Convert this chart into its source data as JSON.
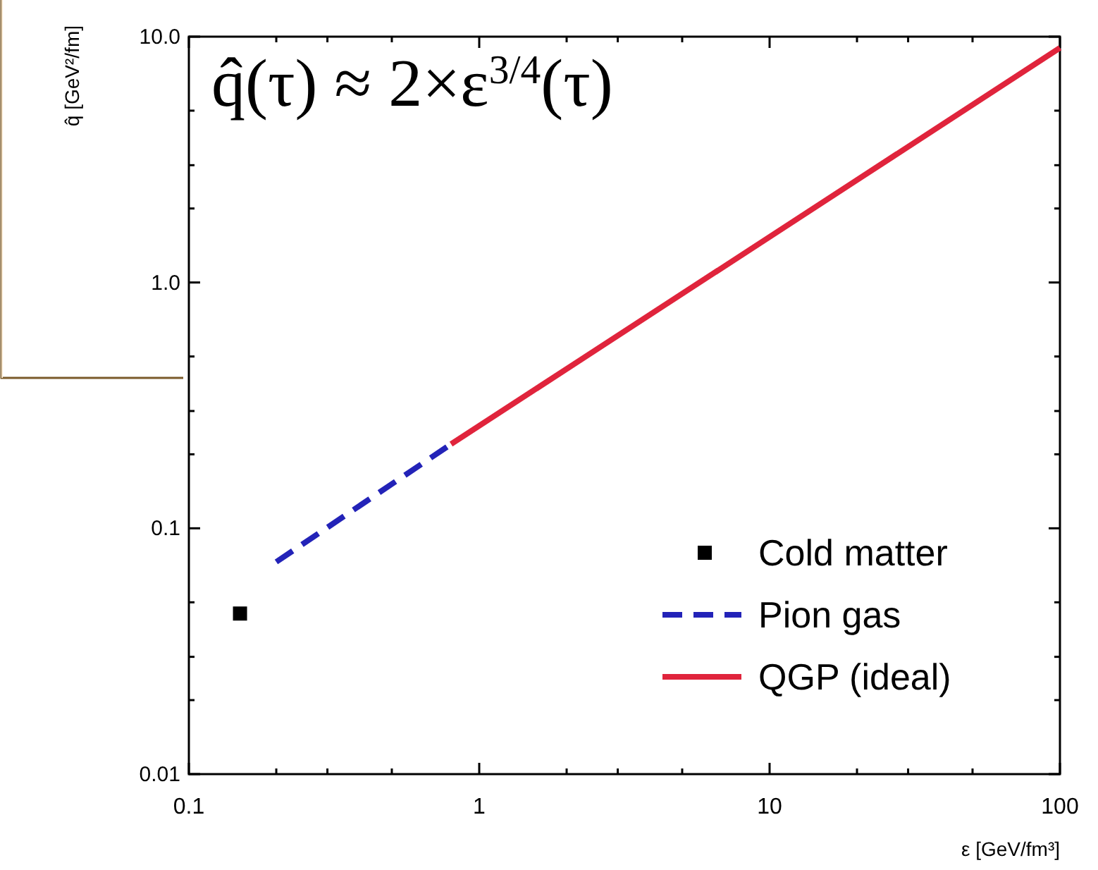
{
  "chart_data": {
    "type": "line",
    "title": "q̂(τ) ≈ 2×ε$^{3/4}$(τ)",
    "xlabel": "ε [GeV/fm³]",
    "ylabel": "q̂ [GeV²/fm]",
    "log": "xy",
    "legend": "bottom right",
    "grid": false,
    "xlim": [
      0.1,
      100
    ],
    "ylim": [
      0.01,
      10
    ],
    "xticks": [
      {
        "value": 0.1,
        "label": "0.1"
      },
      {
        "value": 0.2,
        "label": null
      },
      {
        "value": 0.3,
        "label": null
      },
      {
        "value": 0.5,
        "label": null
      },
      {
        "value": 1,
        "label": "1"
      },
      {
        "value": 2,
        "label": null
      },
      {
        "value": 3,
        "label": null
      },
      {
        "value": 5,
        "label": null
      },
      {
        "value": 10,
        "label": "10"
      },
      {
        "value": 20,
        "label": null
      },
      {
        "value": 30,
        "label": null
      },
      {
        "value": 50,
        "label": null
      },
      {
        "value": 100,
        "label": "100"
      }
    ],
    "yticks": [
      {
        "value": 0.01,
        "label": "0.01"
      },
      {
        "value": 0.02,
        "label": null
      },
      {
        "value": 0.03,
        "label": null
      },
      {
        "value": 0.05,
        "label": null
      },
      {
        "value": 0.1,
        "label": "0.1"
      },
      {
        "value": 0.2,
        "label": null
      },
      {
        "value": 0.3,
        "label": null
      },
      {
        "value": 0.5,
        "label": null
      },
      {
        "value": 1,
        "label": "1.0"
      },
      {
        "value": 2,
        "label": null
      },
      {
        "value": 3,
        "label": null
      },
      {
        "value": 5,
        "label": null
      },
      {
        "value": 10,
        "label": "10.0"
      }
    ],
    "series": [
      {
        "name": "Cold matter",
        "type": "scatter",
        "marker": "square",
        "color": "#000000",
        "x": [
          0.15
        ],
        "values": [
          0.045
        ]
      },
      {
        "name": "Pion gas",
        "line_style": "dashed",
        "color": "#2323b8",
        "x": [
          0.2,
          0.8
        ],
        "values": [
          0.073,
          0.22
        ]
      },
      {
        "name": "QGP (ideal)",
        "line_style": "solid",
        "color": "#e0243c",
        "x": [
          0.8,
          100
        ],
        "values": [
          0.22,
          9
        ]
      }
    ]
  }
}
